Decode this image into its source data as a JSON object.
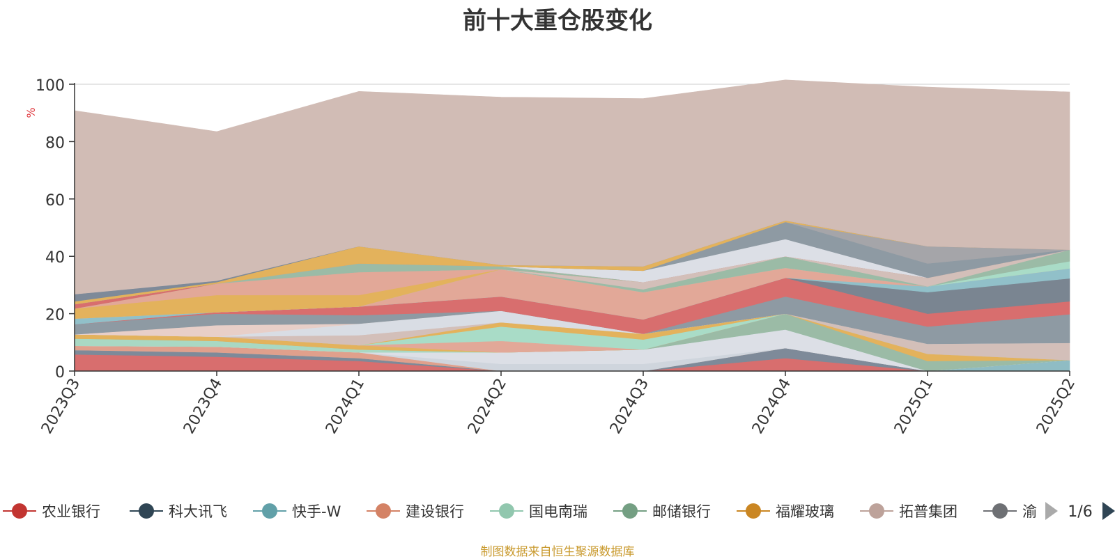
{
  "chart_data": {
    "type": "area",
    "title": "前十大重仓股变化",
    "ylabel": "%",
    "ylim": [
      0,
      100
    ],
    "y_ticks": [
      "0",
      "20",
      "40",
      "60",
      "80",
      "100"
    ],
    "x": [
      "2023Q3",
      "2023Q4",
      "2024Q1",
      "2024Q2",
      "2024Q3",
      "2024Q4",
      "2025Q1",
      "2025Q2"
    ],
    "grid": true,
    "legend_position": "bottom",
    "legend_items": [
      {
        "name": "农业银行",
        "color": "#c23531"
      },
      {
        "name": "科大讯飞",
        "color": "#2f4554"
      },
      {
        "name": "快手-W",
        "color": "#61a0a8"
      },
      {
        "name": "建设银行",
        "color": "#d48265"
      },
      {
        "name": "国电南瑞",
        "color": "#91c7ae"
      },
      {
        "name": "邮储银行",
        "color": "#749f83"
      },
      {
        "name": "福耀玻璃",
        "color": "#ca8622"
      },
      {
        "name": "拓普集团",
        "color": "#bda29a"
      },
      {
        "name": "渝",
        "color": "#6e7074"
      }
    ],
    "legend_page": "1/6",
    "series": [
      {
        "color": "#d86e6e",
        "values": [
          5.8,
          5.0,
          3.5,
          0,
          0,
          4.5,
          0,
          0
        ]
      },
      {
        "color": "#7e8a99",
        "values": [
          1.5,
          1.5,
          1.0,
          0,
          0,
          3.5,
          0,
          0
        ]
      },
      {
        "color": "#8fbcc4",
        "values": [
          0,
          0,
          0,
          0,
          0,
          0,
          0,
          3.8
        ]
      },
      {
        "color": "#e0a08c",
        "values": [
          1.5,
          2.0,
          2.0,
          0,
          0,
          0,
          0,
          0
        ]
      },
      {
        "color": "#cfd5dd",
        "values": [
          0,
          0,
          0,
          2.5,
          2.5,
          0,
          0,
          0
        ]
      },
      {
        "color": "#dcdfe6",
        "values": [
          0,
          0,
          0,
          4.0,
          5.0,
          6.5,
          0,
          0
        ]
      },
      {
        "color": "#a9d8c3",
        "values": [
          2.5,
          2.0,
          1.0,
          0,
          0,
          0,
          0,
          0
        ]
      },
      {
        "color": "#9bbba6",
        "values": [
          0,
          0,
          0,
          0,
          0,
          5.5,
          3.5,
          0
        ]
      },
      {
        "color": "#e3b25c",
        "values": [
          1.5,
          1.5,
          1.5,
          0,
          0,
          0,
          2.5,
          0
        ]
      },
      {
        "color": "#e2a898",
        "values": [
          0,
          0,
          0,
          4.0,
          0,
          0,
          0,
          0
        ]
      },
      {
        "color": "#a9dcc7",
        "values": [
          0,
          0,
          0,
          5.0,
          3.5,
          0,
          0,
          0
        ]
      },
      {
        "color": "#e3b25c",
        "values": [
          0,
          0,
          0,
          1.5,
          2.0,
          0,
          0,
          0
        ]
      },
      {
        "color": "#d3bfb9",
        "values": [
          0,
          0,
          3.5,
          0,
          0,
          0,
          3.5,
          6.0
        ]
      },
      {
        "color": "#d9dde4",
        "values": [
          0,
          0,
          4.0,
          4.0,
          0,
          0,
          0,
          0
        ]
      },
      {
        "color": "#e8cfc8",
        "values": [
          0,
          4.0,
          0,
          0,
          0,
          0,
          0,
          0
        ]
      },
      {
        "color": "#8e9aa3",
        "values": [
          3.5,
          4.0,
          3.0,
          0,
          0,
          6.0,
          6.0,
          10.0
        ]
      },
      {
        "color": "#d86e6e",
        "values": [
          0,
          0.5,
          3.0,
          5.0,
          5.0,
          6.5,
          4.5,
          4.5
        ]
      },
      {
        "color": "#7a8591",
        "values": [
          0,
          0,
          0,
          0,
          0,
          0,
          7.5,
          8.0
        ]
      },
      {
        "color": "#91c0c9",
        "values": [
          2.0,
          0,
          0,
          0,
          0,
          0,
          2.0,
          3.5
        ]
      },
      {
        "color": "#e2a898",
        "values": [
          0,
          0,
          0,
          9.5,
          9.5,
          3.5,
          0,
          0
        ]
      },
      {
        "color": "#a9dcc7",
        "values": [
          0,
          0,
          0,
          0,
          0,
          0,
          0,
          2.5
        ]
      },
      {
        "color": "#9bbba6",
        "values": [
          0,
          0,
          0,
          0,
          1.0,
          4.0,
          0,
          4.0
        ]
      },
      {
        "color": "#d3bfb9",
        "values": [
          0,
          0,
          0,
          0,
          2.5,
          0,
          3.0,
          0
        ]
      },
      {
        "color": "#e3b25c",
        "values": [
          3.5,
          6.0,
          4.0,
          0,
          0,
          0,
          0,
          0
        ]
      },
      {
        "color": "#e2a898",
        "values": [
          0,
          4.0,
          8.0,
          0,
          0,
          0,
          0,
          0
        ]
      },
      {
        "color": "#9bbba6",
        "values": [
          0,
          0,
          3.0,
          1.0,
          0,
          0,
          0,
          0
        ]
      },
      {
        "color": "#d86e6e",
        "values": [
          1.5,
          0,
          0,
          0,
          0,
          0,
          0,
          0
        ]
      },
      {
        "color": "#dcdfe6",
        "values": [
          0,
          0,
          0,
          0,
          4.0,
          6.0,
          0,
          0
        ]
      },
      {
        "color": "#8e9aa3",
        "values": [
          0,
          0,
          0,
          0,
          0,
          6.0,
          5.0,
          0
        ]
      },
      {
        "color": "#a5a5a9",
        "values": [
          0,
          0,
          0,
          0,
          0,
          0,
          6.0,
          0
        ]
      },
      {
        "color": "#e3b25c",
        "values": [
          1.0,
          0.5,
          6.0,
          0.5,
          1.5,
          0.5,
          0,
          0
        ]
      },
      {
        "color": "#7e8a99",
        "values": [
          2.5,
          0.5,
          0,
          0,
          0,
          0,
          0,
          0
        ]
      },
      {
        "color": "#d1bcb5",
        "values": [
          64.0,
          52.0,
          54.0,
          58.5,
          58.5,
          49.0,
          55.5,
          55.0
        ]
      }
    ]
  },
  "legend_prev_icon": "triangle-left",
  "legend_next_icon": "triangle-right",
  "source_note": "制图数据来自恒生聚源数据库"
}
